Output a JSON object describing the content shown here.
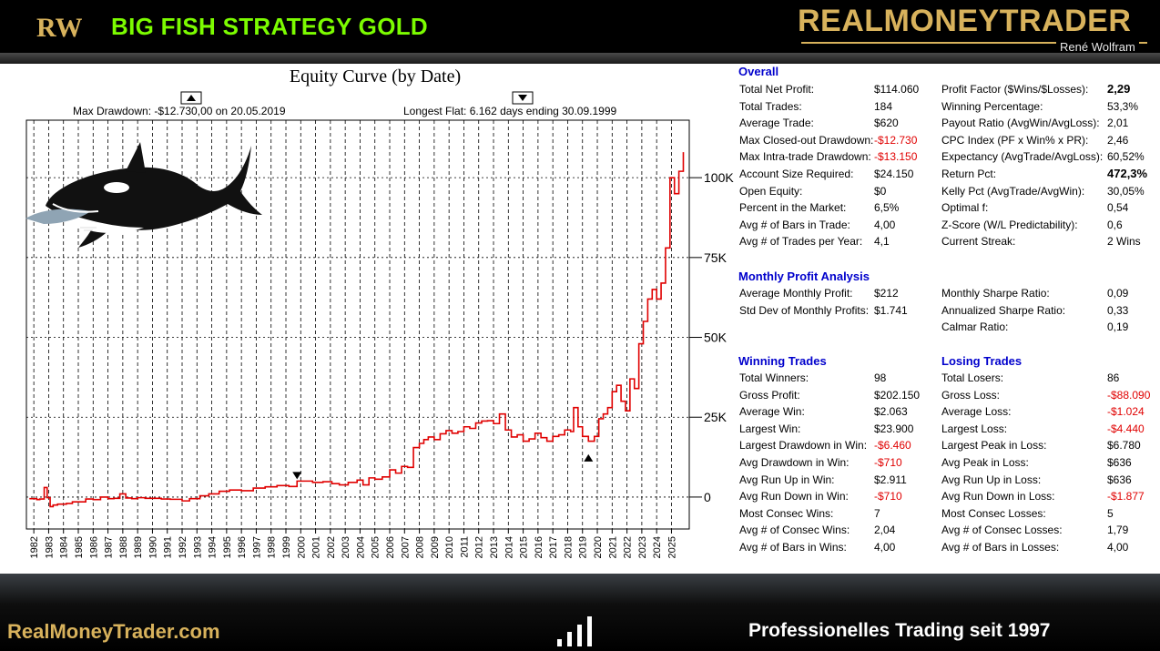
{
  "header": {
    "logo_text": "RW",
    "strategy_title": "BIG FISH STRATEGY  GOLD",
    "brand": "REALMONEYTRADER",
    "brand_sub": "René Wolfram"
  },
  "footer": {
    "site": "RealMoneyTrader.com",
    "tagline": "Professionelles  Trading seit 1997"
  },
  "colors": {
    "title_green": "#7cfc00",
    "brand_gold": "#d8b25c",
    "equity_line": "#e00000",
    "negative_value": "#e00000",
    "section_header": "#0000cc"
  },
  "decoration": {
    "illustration": "orca-whale-eating-fish"
  },
  "chart_data": {
    "type": "line",
    "title": "Equity Curve (by Date)",
    "annotations": {
      "max_drawdown": "Max Drawdown: -$12.730,00 on 20.05.2019",
      "longest_flat": "Longest Flat: 6.162 days ending 30.09.1999"
    },
    "markers": [
      {
        "name": "flat-end",
        "x": 1999.75,
        "y": 5000,
        "shape": "triangle-down"
      },
      {
        "name": "max-drawdown",
        "x": 2019.4,
        "y": 14000,
        "shape": "triangle-up"
      }
    ],
    "y_ticks": [
      {
        "value": 0,
        "label": "0"
      },
      {
        "value": 25000,
        "label": "25K"
      },
      {
        "value": 50000,
        "label": "50K"
      },
      {
        "value": 75000,
        "label": "75K"
      },
      {
        "value": 100000,
        "label": "100K"
      }
    ],
    "x_ticks": [
      "1982",
      "1983",
      "1984",
      "1985",
      "1986",
      "1987",
      "1988",
      "1989",
      "1990",
      "1991",
      "1992",
      "1993",
      "1994",
      "1995",
      "1996",
      "1997",
      "1998",
      "1999",
      "2000",
      "2001",
      "2002",
      "2003",
      "2004",
      "2005",
      "2006",
      "2007",
      "2008",
      "2009",
      "2010",
      "2011",
      "2012",
      "2013",
      "2014",
      "2015",
      "2016",
      "2017",
      "2018",
      "2019",
      "2020",
      "2021",
      "2022",
      "2023",
      "2024",
      "2025"
    ],
    "xlim": [
      1981.5,
      2026.2
    ],
    "ylim": [
      -10000,
      118000
    ],
    "grid": "vertical-dashed",
    "series": [
      {
        "x": [
          1981.7,
          1982.2,
          1982.4,
          1982.7,
          1982.9,
          1983.1,
          1983.3,
          1983.6,
          1984.2,
          1984.6,
          1985.0,
          1985.5,
          1986.0,
          1986.5,
          1987.0,
          1987.4,
          1987.8,
          1988.2,
          1988.6,
          1989.0,
          1989.5,
          1990.0,
          1990.6,
          1991.2,
          1992.0,
          1992.5,
          1993.2,
          1993.8,
          1994.5,
          1995.2,
          1996.0,
          1996.8,
          1997.6,
          1998.4,
          1999.2,
          1999.75,
          2000.2,
          2000.8,
          2001.5,
          2002.1,
          2002.6,
          2003.2,
          2003.8,
          2004.2,
          2004.6,
          2005.0,
          2005.5,
          2006.0,
          2006.4,
          2006.8,
          2007.2,
          2007.6,
          2008.0,
          2008.3,
          2008.6,
          2009.0,
          2009.4,
          2009.8,
          2010.2,
          2010.6,
          2011.0,
          2011.4,
          2011.8,
          2012.2,
          2012.6,
          2013.0,
          2013.4,
          2013.8,
          2014.2,
          2014.6,
          2015.0,
          2015.4,
          2015.8,
          2016.2,
          2016.6,
          2017.0,
          2017.4,
          2017.8,
          2018.2,
          2018.4,
          2018.7,
          2019.0,
          2019.4,
          2019.8,
          2020.1,
          2020.4,
          2020.7,
          2021.0,
          2021.3,
          2021.6,
          2021.9,
          2022.2,
          2022.5,
          2022.8,
          2023.1,
          2023.4,
          2023.7,
          2024.0,
          2024.3,
          2024.6,
          2024.9,
          2025.2,
          2025.5,
          2025.8
        ],
        "y": [
          -500,
          -800,
          -600,
          3000,
          -200,
          -3000,
          -2500,
          -2200,
          -2000,
          -1500,
          -1500,
          -600,
          -800,
          0,
          -500,
          -400,
          1000,
          -300,
          -500,
          -200,
          -400,
          -400,
          -600,
          -700,
          -1200,
          -500,
          400,
          1000,
          1800,
          2200,
          2000,
          2800,
          3200,
          3600,
          3300,
          5000,
          5000,
          4600,
          4800,
          4200,
          3800,
          4600,
          5300,
          3800,
          6000,
          5600,
          6300,
          8500,
          7500,
          9600,
          9300,
          15500,
          16800,
          18000,
          18800,
          18000,
          19800,
          20800,
          20000,
          20500,
          22000,
          21500,
          23200,
          23800,
          23900,
          23000,
          26000,
          21000,
          18800,
          19500,
          17500,
          18200,
          20000,
          18600,
          17500,
          19000,
          19500,
          21000,
          20500,
          28000,
          22000,
          19000,
          17500,
          19000,
          24500,
          26000,
          28000,
          33000,
          35000,
          30000,
          27000,
          37000,
          34000,
          48000,
          55000,
          62000,
          65000,
          62000,
          67000,
          78000,
          100000,
          95000,
          102000,
          108000
        ]
      }
    ]
  },
  "stats": {
    "overall": {
      "header": "Overall",
      "left": [
        {
          "label": "Total Net Profit:",
          "value": "$114.060"
        },
        {
          "label": "Total Trades:",
          "value": "184"
        },
        {
          "label": "Average Trade:",
          "value": "$620"
        },
        {
          "label": "Max Closed-out Drawdown:",
          "value": "-$12.730",
          "neg": true
        },
        {
          "label": "Max Intra-trade Drawdown:",
          "value": "-$13.150",
          "neg": true
        },
        {
          "label": "Account Size Required:",
          "value": "$24.150"
        },
        {
          "label": "Open Equity:",
          "value": "$0"
        },
        {
          "label": "Percent in the Market:",
          "value": "6,5%"
        },
        {
          "label": "Avg # of Bars in Trade:",
          "value": "4,00"
        },
        {
          "label": "Avg # of Trades per Year:",
          "value": "4,1"
        }
      ],
      "right": [
        {
          "label": "Profit Factor ($Wins/$Losses):",
          "value": "2,29",
          "bold": true
        },
        {
          "label": "Winning Percentage:",
          "value": "53,3%"
        },
        {
          "label": "Payout Ratio (AvgWin/AvgLoss):",
          "value": "2,01"
        },
        {
          "label": "CPC Index (PF x Win% x PR):",
          "value": "2,46"
        },
        {
          "label": "Expectancy (AvgTrade/AvgLoss):",
          "value": "60,52%"
        },
        {
          "label": "Return Pct:",
          "value": "472,3%",
          "bold": true
        },
        {
          "label": "Kelly Pct (AvgTrade/AvgWin):",
          "value": "30,05%"
        },
        {
          "label": "Optimal f:",
          "value": "0,54"
        },
        {
          "label": "Z-Score (W/L Predictability):",
          "value": "0,6"
        },
        {
          "label": "Current Streak:",
          "value": "2 Wins"
        }
      ]
    },
    "monthly": {
      "header": "Monthly Profit Analysis",
      "left": [
        {
          "label": "Average Monthly Profit:",
          "value": "$212"
        },
        {
          "label": "Std Dev of Monthly Profits:",
          "value": "$1.741"
        }
      ],
      "right": [
        {
          "label": "Monthly Sharpe Ratio:",
          "value": "0,09"
        },
        {
          "label": "Annualized Sharpe Ratio:",
          "value": "0,33"
        },
        {
          "label": "Calmar Ratio:",
          "value": "0,19"
        }
      ]
    },
    "winning": {
      "header": "Winning Trades",
      "rows": [
        {
          "label": "Total Winners:",
          "value": "98"
        },
        {
          "label": "Gross Profit:",
          "value": "$202.150"
        },
        {
          "label": "Average Win:",
          "value": "$2.063"
        },
        {
          "label": "Largest Win:",
          "value": "$23.900"
        },
        {
          "label": "Largest Drawdown in Win:",
          "value": "-$6.460",
          "neg": true
        },
        {
          "label": "Avg Drawdown in Win:",
          "value": "-$710",
          "neg": true
        },
        {
          "label": "Avg Run Up in Win:",
          "value": "$2.911"
        },
        {
          "label": "Avg Run Down in Win:",
          "value": "-$710",
          "neg": true
        },
        {
          "label": "Most Consec Wins:",
          "value": "7"
        },
        {
          "label": "Avg # of Consec Wins:",
          "value": "2,04"
        },
        {
          "label": "Avg # of Bars in Wins:",
          "value": "4,00"
        }
      ]
    },
    "losing": {
      "header": "Losing Trades",
      "rows": [
        {
          "label": "Total Losers:",
          "value": "86"
        },
        {
          "label": "Gross Loss:",
          "value": "-$88.090",
          "neg": true
        },
        {
          "label": "Average Loss:",
          "value": "-$1.024",
          "neg": true
        },
        {
          "label": "Largest Loss:",
          "value": "-$4.440",
          "neg": true
        },
        {
          "label": "Largest Peak in Loss:",
          "value": "$6.780"
        },
        {
          "label": "Avg Peak in Loss:",
          "value": "$636"
        },
        {
          "label": "Avg Run Up in Loss:",
          "value": "$636"
        },
        {
          "label": "Avg Run Down in Loss:",
          "value": "-$1.877",
          "neg": true
        },
        {
          "label": "Most Consec Losses:",
          "value": "5"
        },
        {
          "label": "Avg # of Consec Losses:",
          "value": "1,79"
        },
        {
          "label": "Avg # of Bars in Losses:",
          "value": "4,00"
        }
      ]
    }
  }
}
